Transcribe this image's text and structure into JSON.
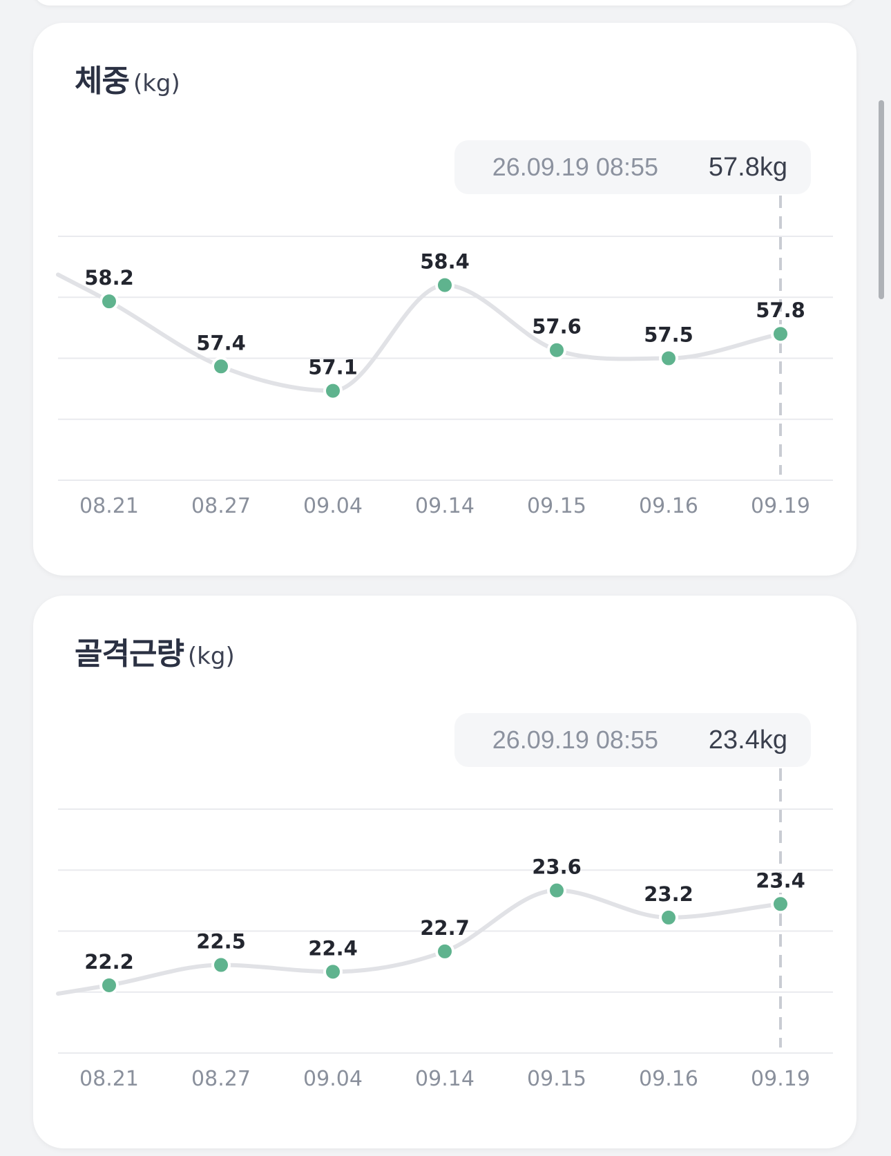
{
  "cards": [
    {
      "title": "체중",
      "unit": "(kg)",
      "tooltip": {
        "datetime": "26.09.19 08:55",
        "value": "57.8kg"
      }
    },
    {
      "title": "골격근량",
      "unit": "(kg)",
      "tooltip": {
        "datetime": "26.09.19 08:55",
        "value": "23.4kg"
      }
    }
  ],
  "chart_data": [
    {
      "type": "line",
      "title": "체중",
      "ylabel": "(kg)",
      "categories": [
        "08.21",
        "08.27",
        "09.04",
        "09.14",
        "09.15",
        "09.16",
        "09.19"
      ],
      "values": [
        58.2,
        57.4,
        57.1,
        58.4,
        57.6,
        57.5,
        57.8
      ],
      "value_labels": [
        "58.2",
        "57.4",
        "57.1",
        "58.4",
        "57.6",
        "57.5",
        "57.8"
      ],
      "selected_index": 6,
      "ylim": [
        56,
        59
      ],
      "grid": true,
      "colors": {
        "line": "#e1e2e6",
        "point": "#5fb38e",
        "guide": "#c9ccd3"
      }
    },
    {
      "type": "line",
      "title": "골격근량",
      "ylabel": "(kg)",
      "categories": [
        "08.21",
        "08.27",
        "09.04",
        "09.14",
        "09.15",
        "09.16",
        "09.19"
      ],
      "values": [
        22.2,
        22.5,
        22.4,
        22.7,
        23.6,
        23.2,
        23.4
      ],
      "value_labels": [
        "22.2",
        "22.5",
        "22.4",
        "22.7",
        "23.6",
        "23.2",
        "23.4"
      ],
      "selected_index": 6,
      "ylim": [
        21.2,
        24.8
      ],
      "grid": true,
      "colors": {
        "line": "#e1e2e6",
        "point": "#5fb38e",
        "guide": "#c9ccd3"
      }
    }
  ]
}
